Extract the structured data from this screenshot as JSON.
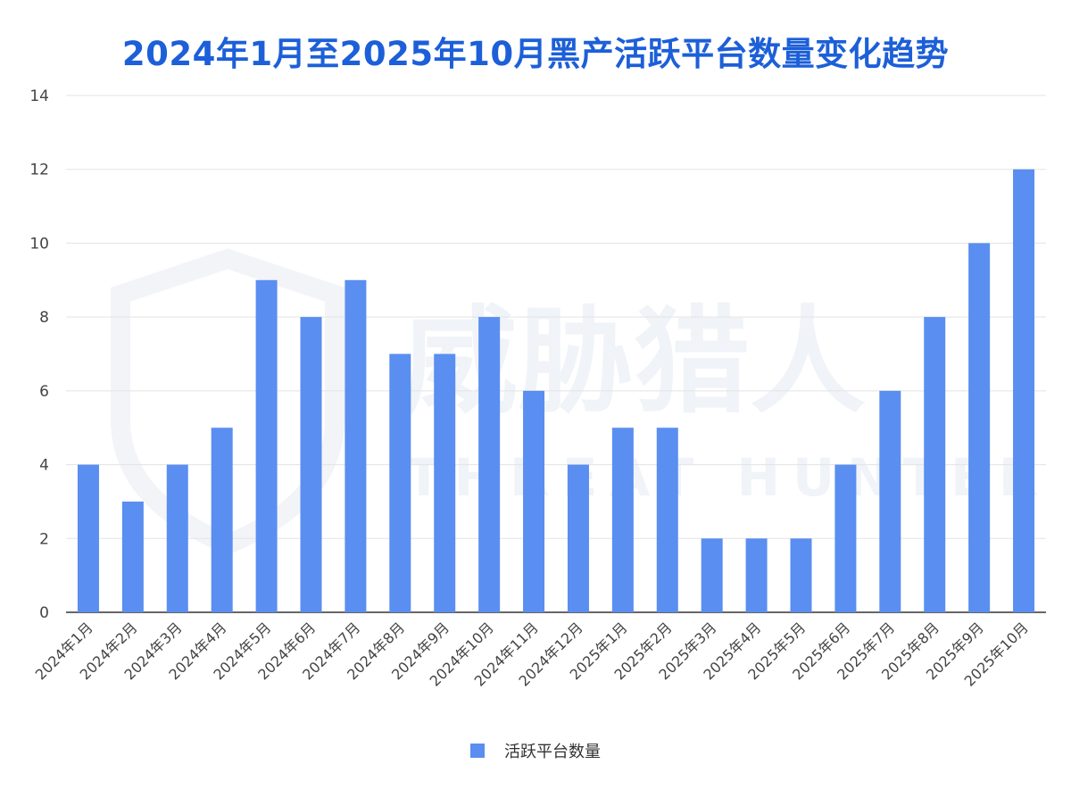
{
  "chart_data": {
    "type": "bar",
    "title": "2024年1月至2025年10月黑产活跃平台数量变化趋势",
    "categories": [
      "2024年1月",
      "2024年2月",
      "2024年3月",
      "2024年4月",
      "2024年5月",
      "2024年6月",
      "2024年7月",
      "2024年8月",
      "2024年9月",
      "2024年10月",
      "2024年11月",
      "2024年12月",
      "2025年1月",
      "2025年2月",
      "2025年3月",
      "2025年4月",
      "2025年5月",
      "2025年6月",
      "2025年7月",
      "2025年8月",
      "2025年9月",
      "2025年10月"
    ],
    "series": [
      {
        "name": "活跃平台数量",
        "values": [
          4,
          3,
          4,
          5,
          9,
          8,
          9,
          7,
          7,
          8,
          6,
          4,
          5,
          5,
          2,
          2,
          2,
          4,
          6,
          8,
          10,
          12
        ],
        "color": "#5a8ef0"
      }
    ],
    "xlabel": "",
    "ylabel": "",
    "ylim": [
      0,
      14
    ],
    "yticks": [
      0,
      2,
      4,
      6,
      8,
      10,
      12,
      14
    ],
    "grid": true,
    "legend": "bottom"
  },
  "watermark": {
    "cn": "威胁猎人",
    "en": "THREAT HUNTER"
  }
}
